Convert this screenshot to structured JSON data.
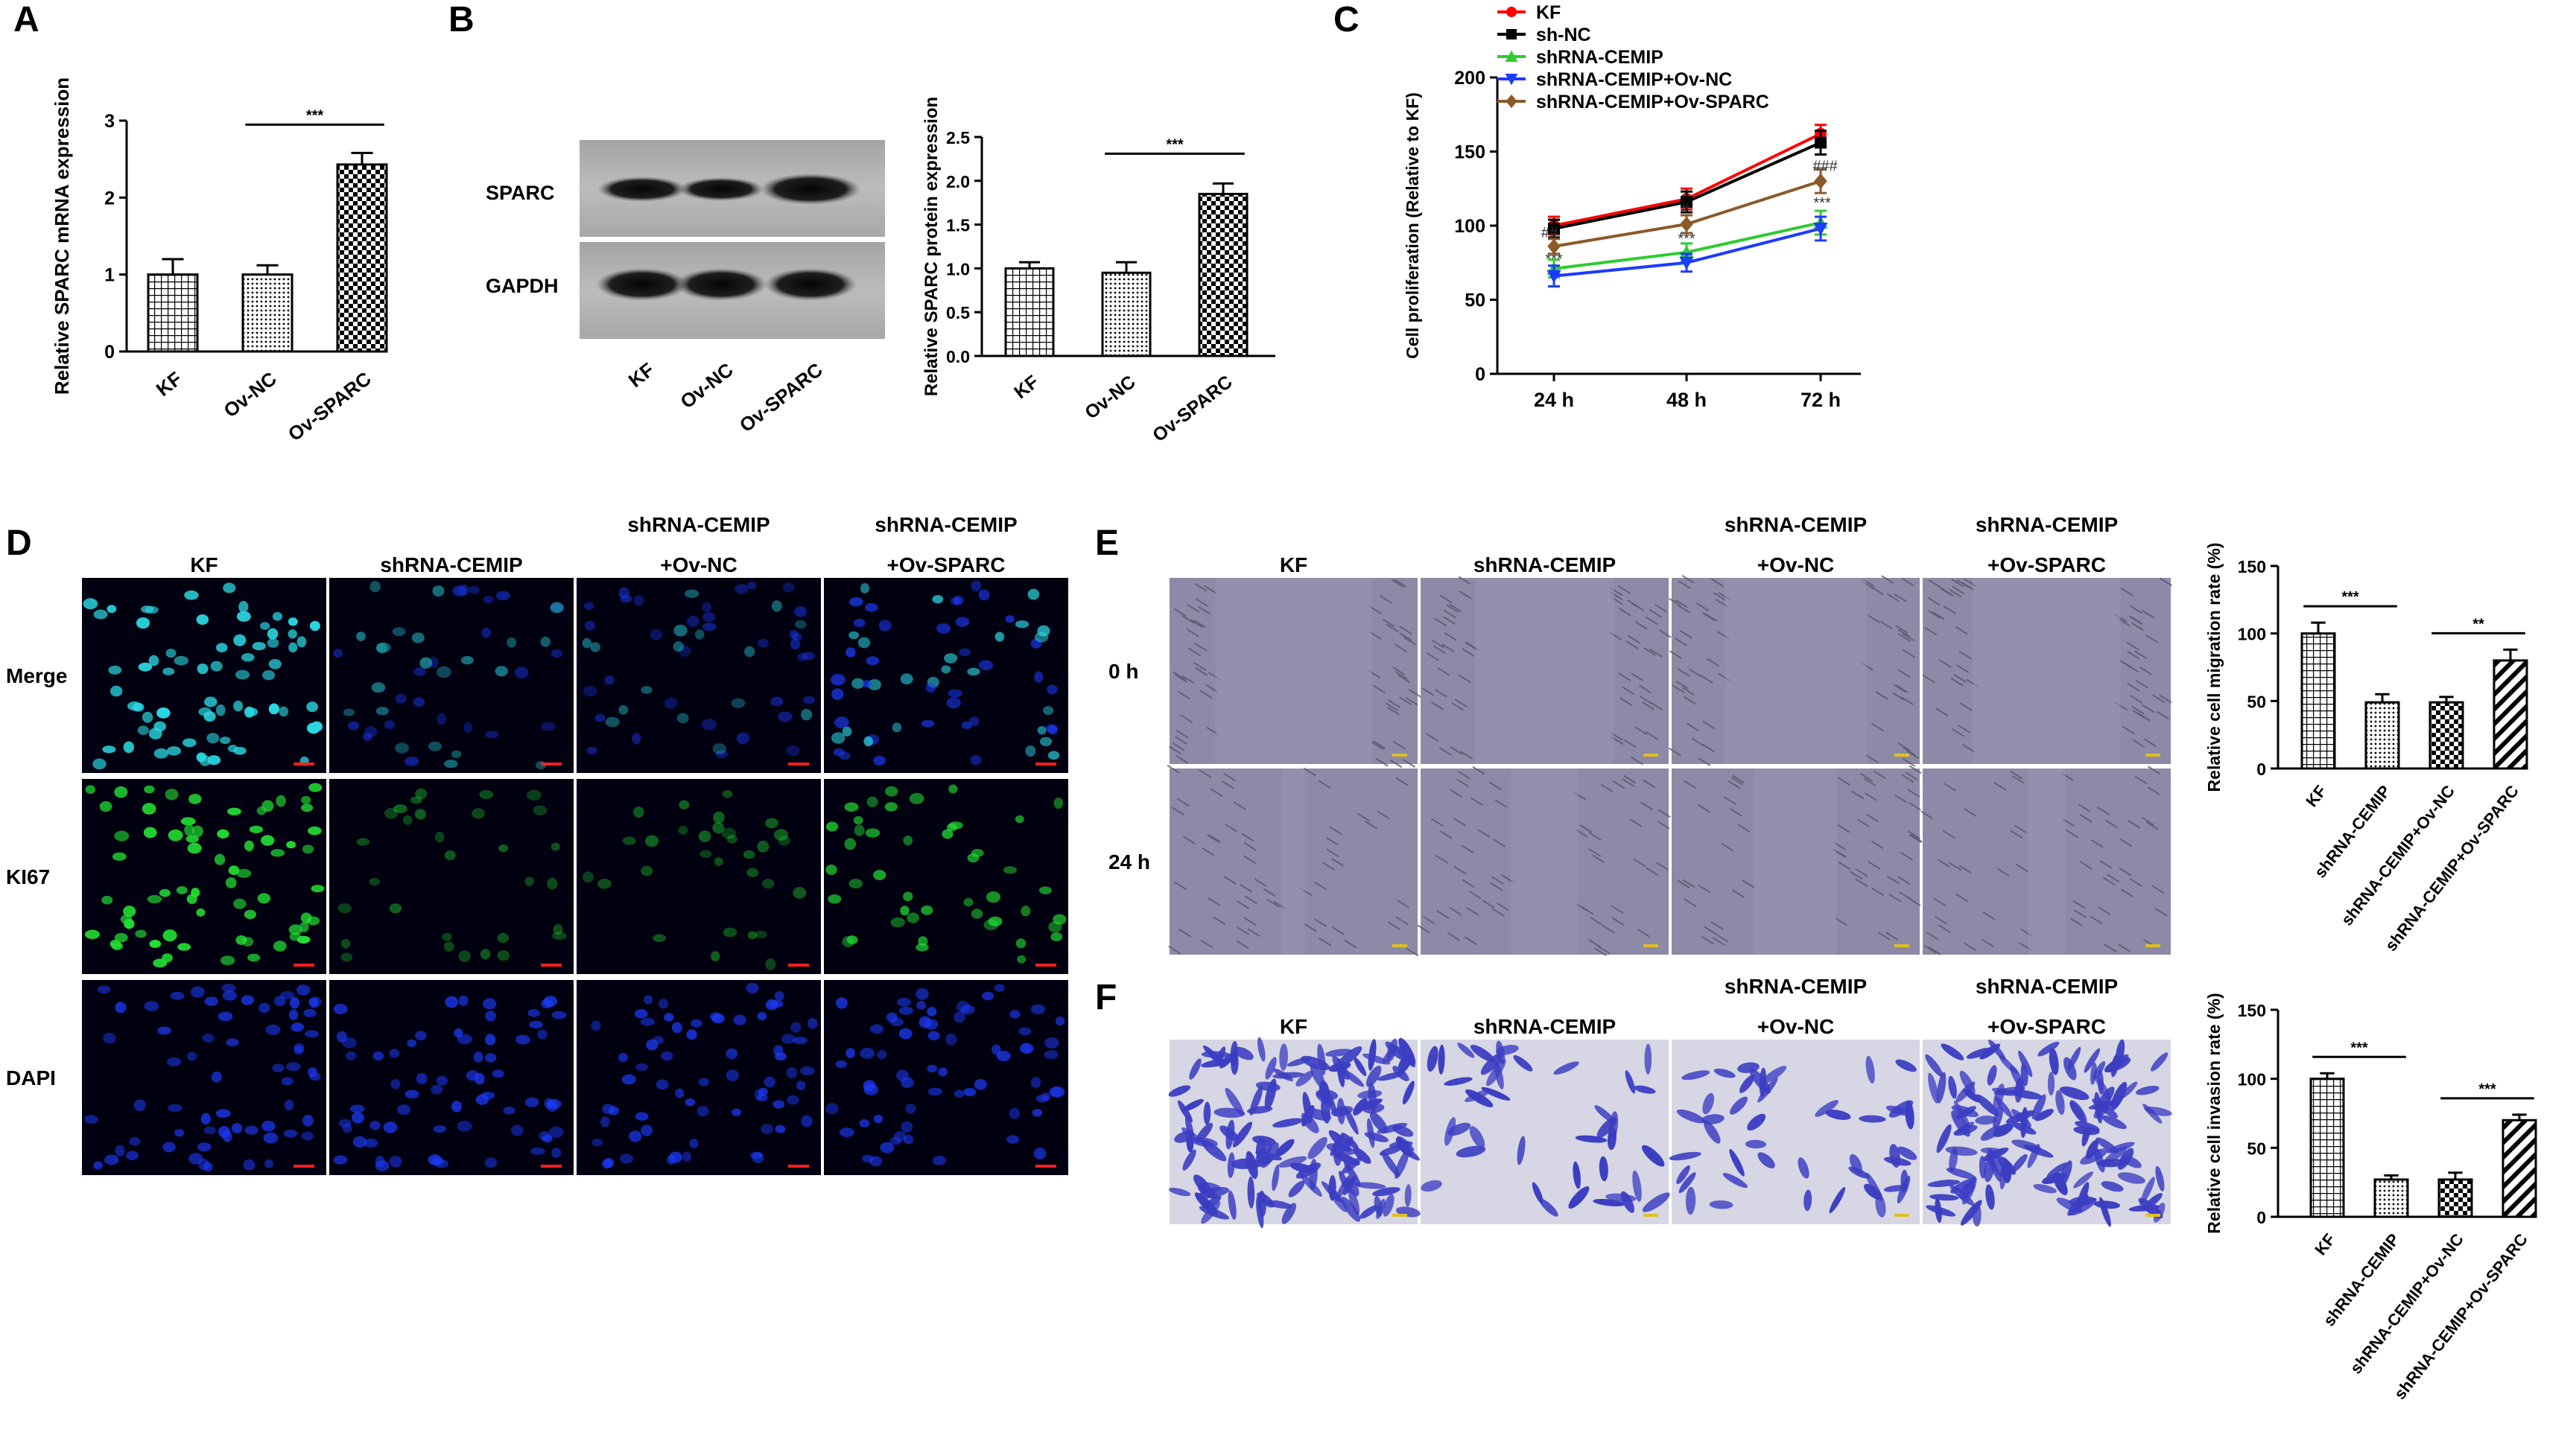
{
  "panels": {
    "a": "A",
    "b": "B",
    "c": "C",
    "d": "D",
    "e": "E",
    "f": "F"
  },
  "colors": {
    "kf": "#ff0000",
    "sh_nc": "#000000",
    "shrna_cemip": "#2ecc2e",
    "shrna_cemip_ov_nc": "#1a3cff",
    "shrna_cemip_ov_sparc": "#8b5a2b",
    "merge_cell": "#2ad6e0",
    "ki67_cell": "#22dd33",
    "dapi_cell": "#1d3cff",
    "wound_bg": "#8c8aa6",
    "invasion_bg": "#d6d6e4",
    "invasion_cell": "#3b3dc2"
  },
  "blot": {
    "labels": [
      "SPARC",
      "GAPDH"
    ],
    "lanes": [
      "KF",
      "Ov-NC",
      "Ov-SPARC"
    ]
  },
  "panel_d": {
    "cols": [
      "KF",
      "shRNA-CEMIP",
      "shRNA-CEMIP\n+Ov-NC",
      "shRNA-CEMIP\n+Ov-SPARC"
    ],
    "rows": [
      "Merge",
      "KI67",
      "DAPI"
    ]
  },
  "panel_e": {
    "cols": [
      "KF",
      "shRNA-CEMIP",
      "shRNA-CEMIP\n+Ov-NC",
      "shRNA-CEMIP\n+Ov-SPARC"
    ],
    "rows": [
      "0 h",
      "24 h"
    ]
  },
  "panel_f": {
    "cols": [
      "KF",
      "shRNA-CEMIP",
      "shRNA-CEMIP\n+Ov-NC",
      "shRNA-CEMIP\n+Ov-SPARC"
    ]
  },
  "chart_data": [
    {
      "id": "A",
      "type": "bar",
      "categories": [
        "KF",
        "Ov-NC",
        "Ov-SPARC"
      ],
      "values": [
        1.0,
        1.0,
        2.43
      ],
      "errors": [
        0.2,
        0.12,
        0.15
      ],
      "patterns": [
        "grid",
        "dots",
        "check"
      ],
      "ylabel": "Relative SPARC mRNA expression",
      "xlabel": "",
      "ylim": [
        0,
        3
      ],
      "yticks": [
        0,
        1,
        2,
        3
      ],
      "significance": [
        {
          "from": 1,
          "to": 2,
          "label": "***"
        }
      ]
    },
    {
      "id": "B",
      "type": "bar",
      "categories": [
        "KF",
        "Ov-NC",
        "Ov-SPARC"
      ],
      "values": [
        1.0,
        0.95,
        1.85
      ],
      "errors": [
        0.07,
        0.12,
        0.12
      ],
      "patterns": [
        "grid",
        "dots",
        "check"
      ],
      "ylabel": "Relative SPARC protein expression",
      "xlabel": "",
      "ylim": [
        0,
        2.5
      ],
      "yticks": [
        "0.0",
        "0.5",
        "1.0",
        "1.5",
        "2.0",
        "2.5"
      ],
      "significance": [
        {
          "from": 1,
          "to": 2,
          "label": "***"
        }
      ]
    },
    {
      "id": "C",
      "type": "line",
      "x": [
        "24 h",
        "48 h",
        "72 h"
      ],
      "ylabel": "Cell proliferation (Relative to KF)",
      "xlabel": "",
      "ylim": [
        0,
        200
      ],
      "yticks": [
        0,
        50,
        100,
        150,
        200
      ],
      "legend_position": "top-left",
      "series": [
        {
          "name": "KF",
          "color_key": "kf",
          "marker": "circle",
          "values": [
            100,
            118,
            162
          ],
          "errors": [
            6,
            7,
            6
          ]
        },
        {
          "name": "sh-NC",
          "color_key": "sh_nc",
          "marker": "square",
          "values": [
            98,
            116,
            156
          ],
          "errors": [
            6,
            7,
            8
          ]
        },
        {
          "name": "shRNA-CEMIP",
          "color_key": "shrna_cemip",
          "marker": "triangle",
          "values": [
            71,
            82,
            102
          ],
          "errors": [
            6,
            6,
            8
          ]
        },
        {
          "name": "shRNA-CEMIP+Ov-NC",
          "color_key": "shrna_cemip_ov_nc",
          "marker": "invtriangle",
          "values": [
            66,
            75,
            98
          ],
          "errors": [
            7,
            6,
            8
          ]
        },
        {
          "name": "shRNA-CEMIP+Ov-SPARC",
          "color_key": "shrna_cemip_ov_sparc",
          "marker": "diamond",
          "values": [
            86,
            101,
            130
          ],
          "errors": [
            5,
            6,
            8
          ]
        }
      ],
      "annotations": [
        {
          "x": "24 h",
          "label": "##"
        },
        {
          "x": "24 h",
          "label": "***"
        },
        {
          "x": "48 h",
          "label": "#"
        },
        {
          "x": "48 h",
          "label": "***"
        },
        {
          "x": "72 h",
          "label": "###"
        },
        {
          "x": "72 h",
          "label": "***"
        }
      ]
    },
    {
      "id": "E",
      "type": "bar",
      "categories": [
        "KF",
        "shRNA-CEMIP",
        "shRNA-CEMIP+Ov-NC",
        "shRNA-CEMIP+Ov-SPARC"
      ],
      "values": [
        100,
        49,
        49,
        80
      ],
      "errors": [
        8,
        6,
        4,
        8
      ],
      "patterns": [
        "grid",
        "dots",
        "check",
        "diag"
      ],
      "ylabel": "Relative cell migration rate (%)",
      "xlabel": "",
      "ylim": [
        0,
        150
      ],
      "yticks": [
        0,
        50,
        100,
        150
      ],
      "significance": [
        {
          "from": 0,
          "to": 1,
          "label": "***"
        },
        {
          "from": 2,
          "to": 3,
          "label": "**"
        }
      ]
    },
    {
      "id": "F",
      "type": "bar",
      "categories": [
        "KF",
        "shRNA-CEMIP",
        "shRNA-CEMIP+Ov-NC",
        "shRNA-CEMIP+Ov-SPARC"
      ],
      "values": [
        100,
        27,
        27,
        70
      ],
      "errors": [
        4,
        3,
        5,
        4
      ],
      "patterns": [
        "grid",
        "dots",
        "check",
        "diag"
      ],
      "ylabel": "Relative cell invasion rate (%)",
      "xlabel": "",
      "ylim": [
        0,
        150
      ],
      "yticks": [
        0,
        50,
        100,
        150
      ],
      "significance": [
        {
          "from": 0,
          "to": 1,
          "label": "***"
        },
        {
          "from": 2,
          "to": 3,
          "label": "***"
        }
      ]
    }
  ]
}
